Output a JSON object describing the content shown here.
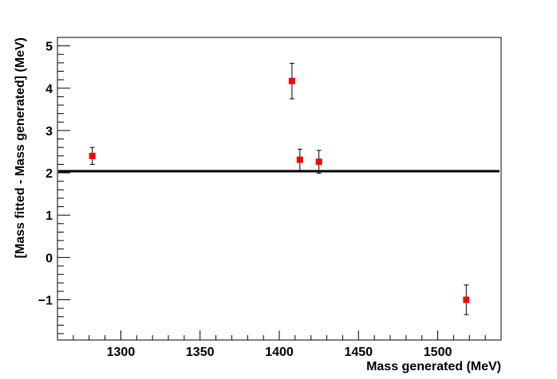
{
  "chart_data": {
    "type": "scatter",
    "title": "",
    "xlabel": "Mass generated (MeV)",
    "ylabel": "[Mass fitted - Mass generated] (MeV)",
    "xlim": [
      1260,
      1540
    ],
    "ylim": [
      -1.95,
      5.2
    ],
    "x_ticks": [
      1300,
      1350,
      1400,
      1450,
      1500
    ],
    "x_tick_labels": [
      "1300",
      "1350",
      "1400",
      "1450",
      "1500"
    ],
    "y_ticks": [
      -1,
      0,
      1,
      2,
      3,
      4,
      5
    ],
    "y_tick_labels": [
      "−1",
      "0",
      "1",
      "2",
      "3",
      "4",
      "5"
    ],
    "grid": false,
    "series": [
      {
        "marker": "square",
        "color": "#ff0000",
        "points": [
          {
            "x": 1282,
            "y": 2.4,
            "err": 0.2
          },
          {
            "x": 1408,
            "y": 4.17,
            "err": 0.42
          },
          {
            "x": 1413,
            "y": 2.31,
            "err": 0.25
          },
          {
            "x": 1425,
            "y": 2.26,
            "err": 0.27
          },
          {
            "x": 1518,
            "y": -1.0,
            "err": 0.35
          }
        ]
      }
    ],
    "reference_line": {
      "y": 2.04,
      "color": "#000000"
    }
  }
}
